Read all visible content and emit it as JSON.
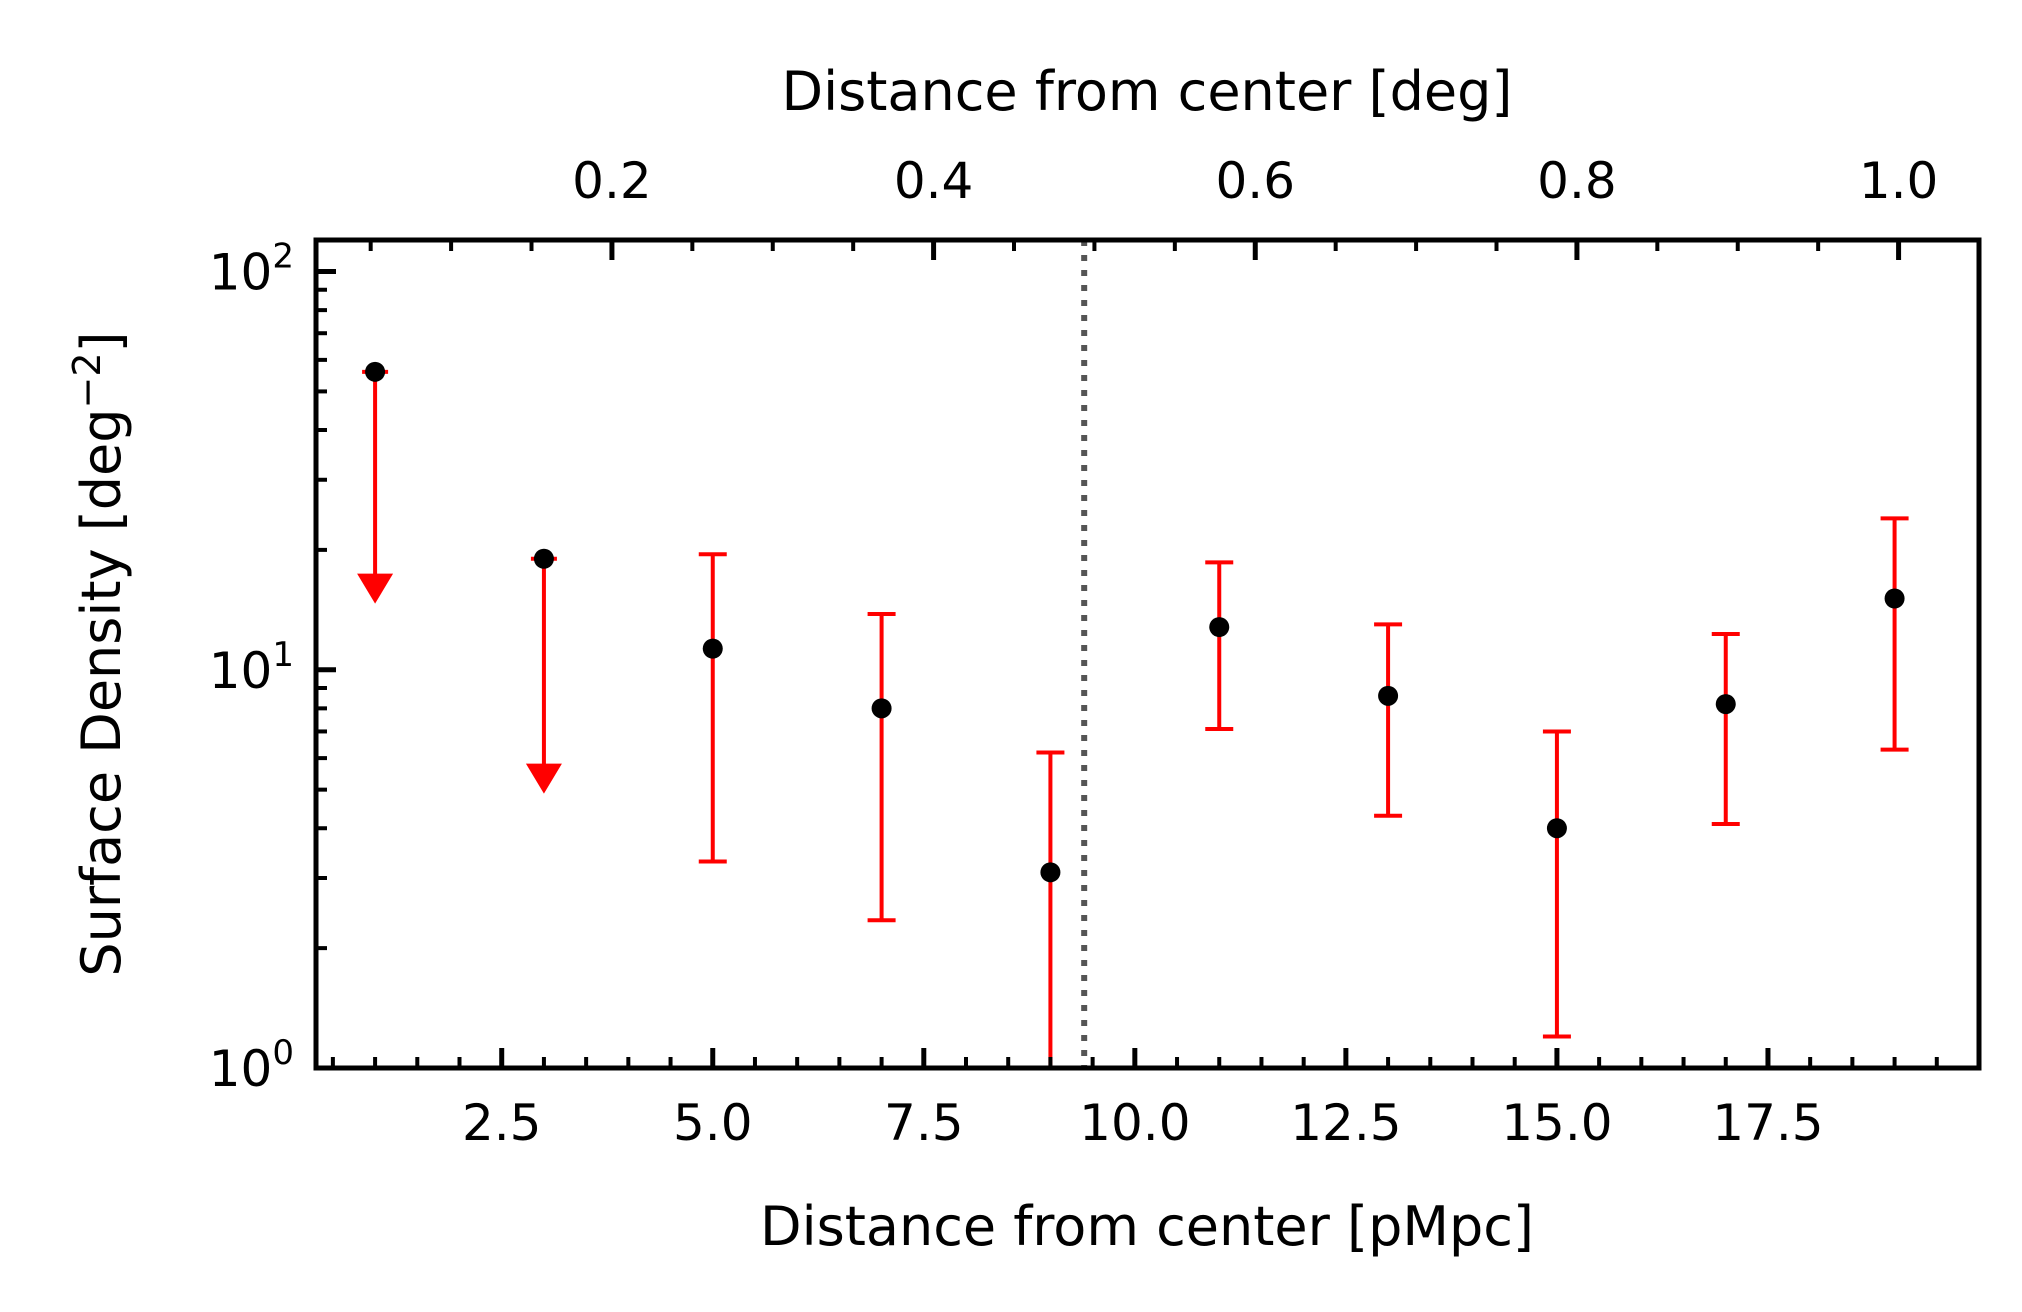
{
  "chart_data": {
    "type": "scatter",
    "xlabel": "Distance from center [pMpc]",
    "ylabel": "Surface Density [deg",
    "ylabel_sup": "−2",
    "ylabel_end": "]",
    "top_xlabel": "Distance from center [deg]",
    "xlim": [
      0.3,
      20.0
    ],
    "ylim": [
      1,
      120
    ],
    "yscale": "log",
    "top_xlim": [
      0.016,
      1.05
    ],
    "grid": false,
    "x_ticks": [
      {
        "value": 2.5,
        "label": "2.5"
      },
      {
        "value": 5.0,
        "label": "5.0"
      },
      {
        "value": 7.5,
        "label": "7.5"
      },
      {
        "value": 10.0,
        "label": "10.0"
      },
      {
        "value": 12.5,
        "label": "12.5"
      },
      {
        "value": 15.0,
        "label": "15.0"
      },
      {
        "value": 17.5,
        "label": "17.5"
      }
    ],
    "top_x_ticks": [
      {
        "value": 0.2,
        "label": "0.2"
      },
      {
        "value": 0.4,
        "label": "0.4"
      },
      {
        "value": 0.6,
        "label": "0.6"
      },
      {
        "value": 0.8,
        "label": "0.8"
      },
      {
        "value": 1.0,
        "label": "1.0"
      }
    ],
    "y_ticks": [
      {
        "value": 1,
        "base": "10",
        "exp": "0"
      },
      {
        "value": 10,
        "base": "10",
        "exp": "1"
      },
      {
        "value": 100,
        "base": "10",
        "exp": "2"
      }
    ],
    "vline_x": 9.4,
    "points": [
      {
        "x": 1,
        "y": 56,
        "upper_limit": true,
        "arrow_to": 15
      },
      {
        "x": 3,
        "y": 19,
        "upper_limit": true,
        "arrow_to": 5
      },
      {
        "x": 5,
        "y": 11.3,
        "err_low": 3.3,
        "err_high": 19.5
      },
      {
        "x": 7,
        "y": 8.0,
        "err_low": 2.35,
        "err_high": 13.8
      },
      {
        "x": 9,
        "y": 3.1,
        "err_low": 1.0,
        "err_high": 6.2
      },
      {
        "x": 11,
        "y": 12.8,
        "err_low": 7.1,
        "err_high": 18.6
      },
      {
        "x": 13,
        "y": 8.6,
        "err_low": 4.3,
        "err_high": 13.0
      },
      {
        "x": 15,
        "y": 4.0,
        "err_low": 1.2,
        "err_high": 7.0
      },
      {
        "x": 17,
        "y": 8.2,
        "err_low": 4.1,
        "err_high": 12.3
      },
      {
        "x": 19,
        "y": 15.1,
        "err_low": 6.3,
        "err_high": 24.0
      }
    ],
    "colors": {
      "points": "#000000",
      "errors": "#ff0000",
      "vline": "#555555",
      "axes": "#000000"
    }
  }
}
